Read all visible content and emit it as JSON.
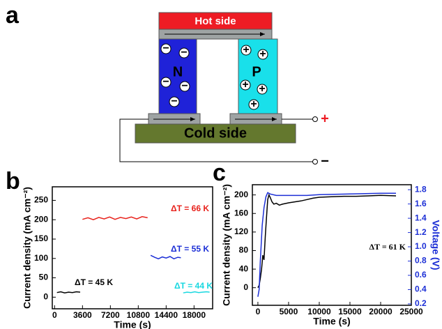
{
  "diagram": {
    "label": "a",
    "hot_side": "Hot side",
    "cold_side": "Cold side",
    "n_label": "N",
    "p_label": "P",
    "electron": "−",
    "hole": "+",
    "positive_terminal": "+",
    "negative_terminal": "−"
  },
  "chart_data": [
    {
      "type": "line",
      "panel_label": "b",
      "xlabel": "Time (s)",
      "ylabel": "Current density (mA cm⁻²)",
      "xlim": [
        -300,
        20400
      ],
      "xticks": [
        0,
        3600,
        7200,
        10800,
        14400,
        18000
      ],
      "ylim": [
        -30,
        285
      ],
      "yticks": [
        0,
        50,
        100,
        150,
        200,
        250
      ],
      "series": [
        {
          "name": "ΔT = 45 K",
          "color": "#000000",
          "x": [
            300,
            800,
            1300,
            1800,
            2300,
            2800,
            3300
          ],
          "values": [
            12,
            14,
            11,
            13,
            12,
            14,
            13
          ]
        },
        {
          "name": "ΔT = 66 K",
          "color": "#e8221c",
          "x": [
            3600,
            4300,
            5000,
            5700,
            6400,
            7100,
            7800,
            8500,
            9200,
            9900,
            10600,
            11300,
            12000
          ],
          "values": [
            201,
            205,
            200,
            206,
            202,
            207,
            201,
            206,
            203,
            207,
            202,
            208,
            205
          ]
        },
        {
          "name": "ΔT = 55 K",
          "color": "#1c2fd6",
          "x": [
            12400,
            12900,
            13400,
            13900,
            14400,
            14900,
            15400,
            15900,
            16300
          ],
          "values": [
            108,
            103,
            99,
            104,
            101,
            105,
            99,
            103,
            102
          ]
        },
        {
          "name": "ΔT = 44 K",
          "color": "#18d8e0",
          "x": [
            16600,
            17100,
            17600,
            18100,
            18600,
            19100,
            19600,
            20000
          ],
          "values": [
            11,
            13,
            12,
            14,
            12,
            13,
            14,
            13
          ]
        }
      ]
    },
    {
      "type": "line",
      "panel_label": "c",
      "xlabel": "Time (s)",
      "ylabel": "Current density (mA cm⁻²)",
      "y2label": "Voltage (V)",
      "annotation": "ΔT = 61 K",
      "xlim": [
        -900,
        25000
      ],
      "xticks": [
        0,
        5000,
        10000,
        15000,
        20000,
        25000
      ],
      "ylim": [
        -38,
        222
      ],
      "yticks": [
        0,
        40,
        80,
        120,
        160,
        200
      ],
      "y2lim": [
        0.18,
        1.87
      ],
      "y2ticks": [
        0.2,
        0.4,
        0.6,
        0.8,
        {
          "value": 1,
          "label": "1.0"
        },
        1.2,
        1.4,
        1.6,
        1.8
      ],
      "series": [
        {
          "color": "#000000",
          "x": [
            0,
            200,
            400,
            600,
            800,
            1000,
            1200,
            1400,
            1600,
            1800,
            2000,
            2300,
            2600,
            3000,
            3500,
            4000,
            5000,
            6000,
            7000,
            8000,
            9000,
            10000,
            12000,
            14000,
            16000,
            18000,
            20000,
            22500
          ],
          "values": [
            0,
            5,
            20,
            40,
            70,
            60,
            110,
            150,
            190,
            200,
            195,
            185,
            180,
            182,
            178,
            180,
            183,
            185,
            187,
            190,
            193,
            195,
            196,
            197,
            197,
            198,
            199,
            198
          ]
        },
        {
          "color": "#1c2fd6",
          "axis": "y2",
          "x": [
            0,
            200,
            400,
            700,
            1000,
            1300,
            1600,
            2000,
            3000,
            5000,
            8000,
            10000,
            15000,
            20000,
            22500
          ],
          "values": [
            0.3,
            0.4,
            0.8,
            1.3,
            1.55,
            1.7,
            1.76,
            1.74,
            1.72,
            1.72,
            1.72,
            1.73,
            1.74,
            1.75,
            1.75
          ]
        }
      ]
    }
  ]
}
